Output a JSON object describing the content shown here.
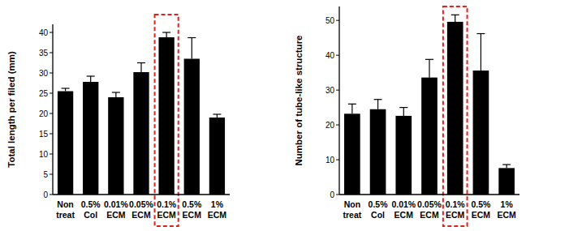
{
  "chart_data": [
    {
      "type": "bar",
      "y_label": "Total length per filed (mm)",
      "categories": [
        "Non treat",
        "0.5% Col",
        "0.01% ECM",
        "0.05% ECM",
        "0.1% ECM",
        "0.5% ECM",
        "1% ECM"
      ],
      "values": [
        25.5,
        27.8,
        24.0,
        30.2,
        38.8,
        33.5,
        19.0
      ],
      "errors": [
        0.7,
        1.4,
        1.2,
        2.3,
        1.2,
        5.2,
        0.8
      ],
      "color": "#000000",
      "ylim": [
        0,
        42
      ],
      "yticks": [
        0,
        5,
        10,
        15,
        20,
        25,
        30,
        35,
        40
      ],
      "grid": false
    },
    {
      "type": "bar",
      "y_label": "Number of tube-like structure",
      "categories": [
        "Non treat",
        "0.5% Col",
        "0.01% ECM",
        "0.05% ECM",
        "0.1% ECM",
        "0.5% ECM",
        "1% ECM"
      ],
      "values": [
        23.2,
        24.5,
        22.6,
        33.6,
        49.6,
        35.6,
        7.6
      ],
      "errors": [
        2.8,
        2.8,
        2.4,
        5.2,
        2.0,
        10.6,
        1.0
      ],
      "color": "#000000",
      "ylim": [
        0,
        54
      ],
      "yticks": [
        0,
        10,
        20,
        30,
        40,
        50
      ],
      "grid": false
    }
  ]
}
